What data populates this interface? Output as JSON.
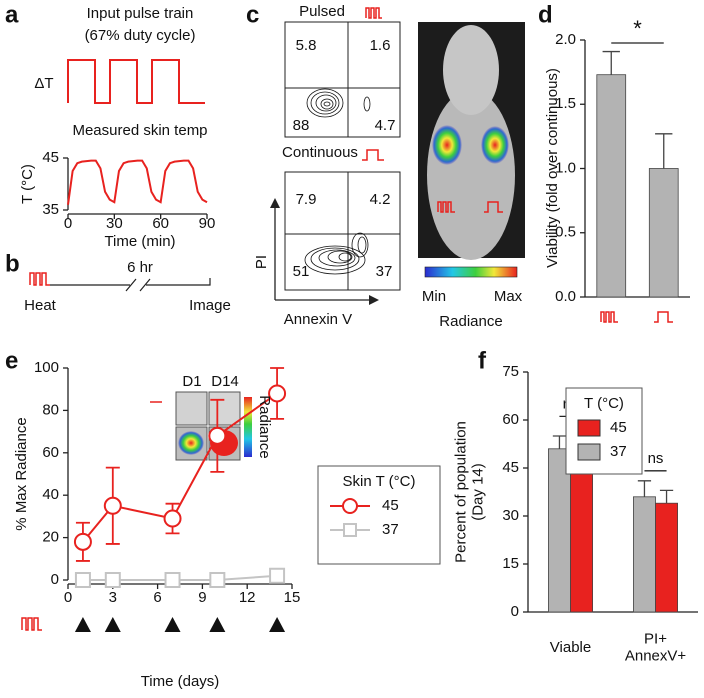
{
  "labels": [
    "a",
    "b",
    "c",
    "d",
    "e",
    "f"
  ],
  "panel_a": {
    "title": "Input pulse train",
    "subtitle": "(67% duty cycle)",
    "y_label": "ΔT"
  },
  "panel_b": {
    "start": "Heat",
    "gap": "6 hr",
    "end": "Image"
  },
  "panel_c": {
    "plots": [
      {
        "title": "Pulsed",
        "quadrants": [
          5.8,
          1.6,
          88,
          4.7
        ]
      },
      {
        "title": "Continuous",
        "quadrants": [
          7.9,
          4.2,
          51,
          37
        ]
      }
    ],
    "y_label": "PI",
    "x_label": "Annexin V",
    "scale_min": "Min",
    "scale_max": "Max",
    "scale_label": "Radiance"
  },
  "chart_data": [
    {
      "type": "line",
      "title": "Measured skin temp",
      "x_label": "Time (min)",
      "y_label": "T (°C)",
      "color": "#e8221f",
      "x": [
        0,
        3,
        6,
        9,
        12,
        15,
        18,
        21,
        24,
        27,
        30,
        33,
        36,
        39,
        42,
        45,
        48,
        51,
        54,
        57,
        60,
        63,
        66,
        69,
        72,
        75,
        78,
        81,
        84,
        87,
        90
      ],
      "values": [
        36,
        42.5,
        44,
        44.3,
        44.4,
        44.5,
        44.5,
        43,
        38.5,
        37,
        36.5,
        42.5,
        44,
        44.3,
        44.4,
        44.5,
        44.5,
        43,
        38.5,
        37,
        36.5,
        42.5,
        44,
        44.3,
        44.4,
        44.5,
        44.5,
        43,
        38.5,
        37,
        36.5
      ],
      "xlim": [
        0,
        90
      ],
      "xticks": [
        0,
        30,
        60,
        90
      ],
      "ylim": [
        35,
        45
      ],
      "yticks": [
        35,
        45
      ]
    },
    {
      "type": "bar",
      "y_label": "Viability (fold over continuous)",
      "categories": [
        null,
        null
      ],
      "values": [
        1.73,
        1.0
      ],
      "errors": [
        0.18,
        0.27
      ],
      "color": "#b3b3b3",
      "annotation": "*",
      "ylim": [
        0,
        2.0
      ],
      "yticks": [
        {
          "value": 0,
          "label": "0.0"
        },
        {
          "value": 0.5,
          "label": "0.5"
        },
        {
          "value": 1,
          "label": "1.0"
        },
        {
          "value": 1.5,
          "label": "1.5"
        },
        {
          "value": 2,
          "label": "2.0"
        }
      ]
    },
    {
      "type": "line",
      "x_label": "Time (days)",
      "y_label": "% Max Radiance",
      "legend_title": "Skin T (°C)",
      "x": [
        1,
        3,
        7,
        10,
        14
      ],
      "series": [
        {
          "name": "45",
          "color": "#e8221f",
          "marker": "circle",
          "values": [
            18,
            35,
            29,
            68,
            88
          ],
          "errors": [
            9,
            18,
            7,
            17,
            12
          ]
        },
        {
          "name": "37",
          "color": "#c4c4c4",
          "marker": "square",
          "values": [
            0,
            0,
            0,
            0,
            2
          ]
        }
      ],
      "treatment_days": [
        1,
        3,
        7,
        10,
        14
      ],
      "inset": {
        "labels": [
          "D1",
          "D14"
        ],
        "scale_label": "Radiance"
      },
      "xlim": [
        0,
        15
      ],
      "xticks": [
        0,
        3,
        6,
        9,
        12,
        15
      ],
      "ylim": [
        0,
        100
      ],
      "yticks": [
        0,
        20,
        40,
        60,
        80,
        100
      ]
    },
    {
      "type": "bar",
      "y_label": "Percent of population\n(Day 14)",
      "legend_title": "T (°C)",
      "categories": [
        "Viable",
        "PI+\nAnnexV+"
      ],
      "series": [
        {
          "name": "37",
          "color": "#b3b3b3",
          "values": [
            51,
            36
          ],
          "errors": [
            4,
            5
          ]
        },
        {
          "name": "45",
          "color": "#e8221f",
          "values": [
            53,
            34
          ],
          "errors": [
            5,
            4
          ]
        }
      ],
      "annotations": [
        "ns",
        "ns"
      ],
      "ylim": [
        0,
        75
      ],
      "yticks": [
        0,
        15,
        30,
        45,
        60,
        75
      ]
    }
  ]
}
